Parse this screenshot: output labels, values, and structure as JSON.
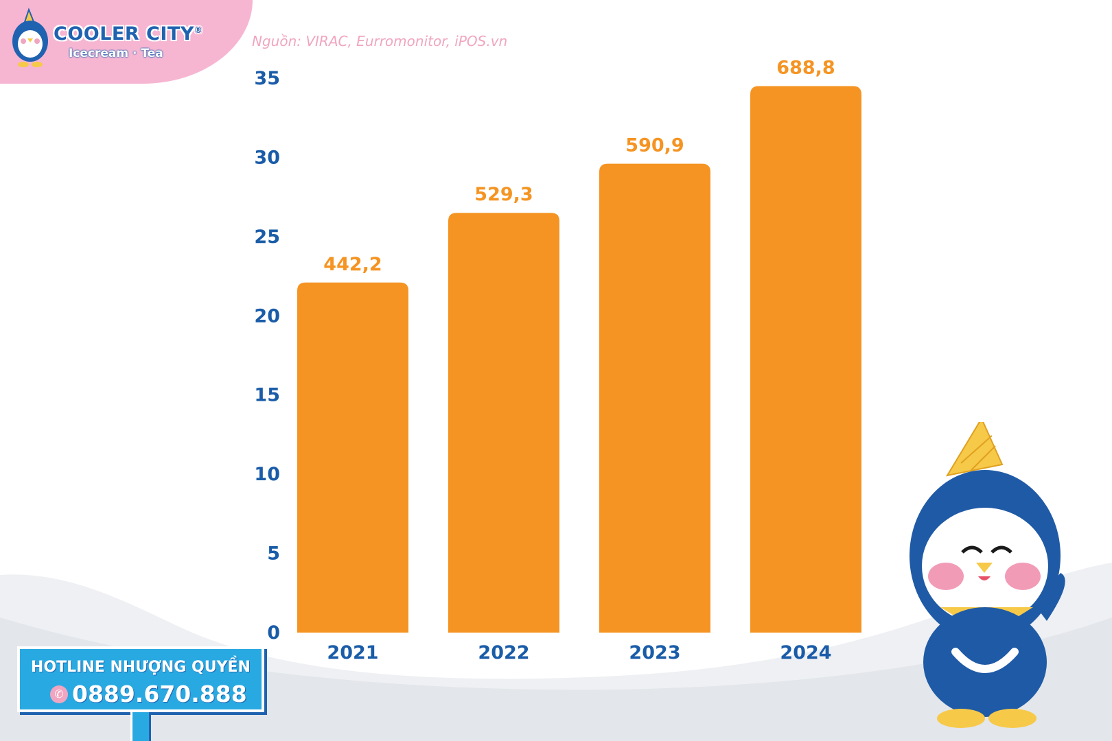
{
  "brand": {
    "name": "COOLER CITY",
    "registered": "®",
    "tagline": "Icecream · Tea"
  },
  "source_note": "Nguồn: VIRAC, Eurromonitor, iPOS.vn",
  "colors": {
    "bar": "#f59422",
    "value_label": "#f59422",
    "axis_label": "#1a5ca8",
    "brand_pink": "#f6b6d2",
    "sign_blue": "#29a9e1"
  },
  "chart_data": {
    "type": "bar",
    "categories": [
      "2021",
      "2022",
      "2023",
      "2024"
    ],
    "values": [
      22.1,
      26.5,
      29.6,
      34.5
    ],
    "data_labels": [
      "442,2",
      "529,3",
      "590,9",
      "688,8"
    ],
    "yticks": [
      "0",
      "5",
      "10",
      "15",
      "20",
      "25",
      "30",
      "35"
    ],
    "ylim": [
      0,
      35
    ],
    "grid": false,
    "legend": "none"
  },
  "hotline": {
    "title": "HOTLINE NHƯỢNG QUYỀN",
    "phone": "0889.670.888"
  },
  "icons": {
    "logo": "penguin-logo-icon",
    "phone": "phone-icon",
    "mascot": "penguin-mascot"
  }
}
